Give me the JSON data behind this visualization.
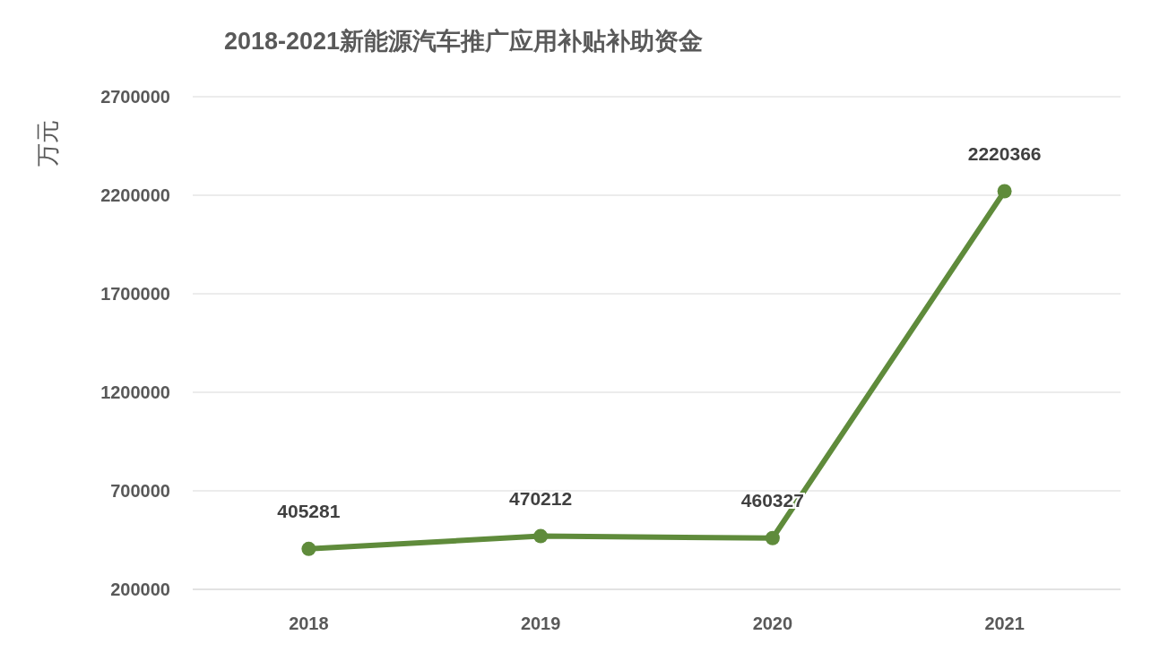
{
  "chart_data": {
    "type": "line",
    "title": "2018-2021新能源汽车推广应用补贴补助资金",
    "ylabel": "万元",
    "categories": [
      "2018",
      "2019",
      "2020",
      "2021"
    ],
    "series": [
      {
        "color": "#5f8b3b",
        "values": [
          405281,
          470212,
          460327,
          2220366
        ]
      }
    ],
    "ylim": [
      200000,
      2700000
    ],
    "yticks": [
      200000,
      700000,
      1200000,
      1700000,
      2200000,
      2700000
    ],
    "grid": "y",
    "marker": "circle",
    "data_labels": true
  }
}
